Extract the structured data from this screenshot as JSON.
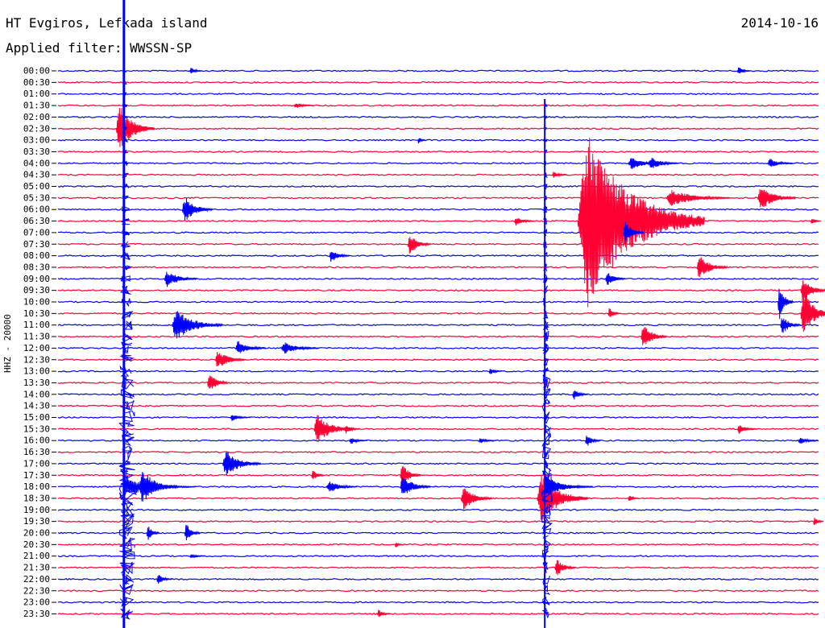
{
  "header": {
    "title": "HT Evgiros, Lefkada island",
    "date": "2014-10-16",
    "filter": "Applied filter: WWSSN-SP"
  },
  "colors": {
    "blue": "#0000ff",
    "red": "#ff0033"
  },
  "chart_data": {
    "type": "line",
    "title": "HT Evgiros, Lefkada island",
    "ylabel": "HHZ - 20000",
    "x_range_minutes": [
      0,
      30
    ],
    "series_colors": [
      "blue",
      "red"
    ],
    "categories": [
      "00:00",
      "00:30",
      "01:00",
      "01:30",
      "02:00",
      "02:30",
      "03:00",
      "03:30",
      "04:00",
      "04:30",
      "05:00",
      "05:30",
      "06:00",
      "06:30",
      "07:00",
      "07:30",
      "08:00",
      "08:30",
      "09:00",
      "09:30",
      "10:00",
      "10:30",
      "11:00",
      "11:30",
      "12:00",
      "12:30",
      "13:00",
      "13:30",
      "14:00",
      "14:30",
      "15:00",
      "15:30",
      "16:00",
      "16:30",
      "17:00",
      "17:30",
      "18:00",
      "18:30",
      "19:00",
      "19:30",
      "20:00",
      "20:30",
      "21:00",
      "21:30",
      "22:00",
      "22:30",
      "23:00",
      "23:30"
    ],
    "events": [
      {
        "row": 0,
        "minute": 5.2,
        "amplitude": 6,
        "duration": 0.5
      },
      {
        "row": 0,
        "minute": 26.8,
        "amplitude": 8,
        "duration": 0.5
      },
      {
        "row": 3,
        "minute": 9.3,
        "amplitude": 5,
        "duration": 0.8
      },
      {
        "row": 5,
        "minute": 2.3,
        "amplitude": 40,
        "duration": 1.5
      },
      {
        "row": 6,
        "minute": 14.2,
        "amplitude": 6,
        "duration": 0.3
      },
      {
        "row": 8,
        "minute": 22.5,
        "amplitude": 10,
        "duration": 1.5
      },
      {
        "row": 8,
        "minute": 23.3,
        "amplitude": 10,
        "duration": 1.2
      },
      {
        "row": 8,
        "minute": 28.0,
        "amplitude": 8,
        "duration": 1.0
      },
      {
        "row": 9,
        "minute": 19.5,
        "amplitude": 6,
        "duration": 0.6
      },
      {
        "row": 11,
        "minute": 24.0,
        "amplitude": 14,
        "duration": 2.5
      },
      {
        "row": 11,
        "minute": 27.6,
        "amplitude": 20,
        "duration": 1.5
      },
      {
        "row": 12,
        "minute": 4.9,
        "amplitude": 22,
        "duration": 1.2
      },
      {
        "row": 13,
        "minute": 20.5,
        "amplitude": 140,
        "duration": 5.0
      },
      {
        "row": 13,
        "minute": 18.0,
        "amplitude": 8,
        "duration": 0.8
      },
      {
        "row": 13,
        "minute": 29.7,
        "amplitude": 6,
        "duration": 0.4
      },
      {
        "row": 14,
        "minute": 22.3,
        "amplitude": 20,
        "duration": 0.8
      },
      {
        "row": 15,
        "minute": 13.8,
        "amplitude": 18,
        "duration": 0.9
      },
      {
        "row": 16,
        "minute": 10.7,
        "amplitude": 12,
        "duration": 0.8
      },
      {
        "row": 17,
        "minute": 25.2,
        "amplitude": 20,
        "duration": 1.2
      },
      {
        "row": 18,
        "minute": 4.2,
        "amplitude": 14,
        "duration": 1.3
      },
      {
        "row": 18,
        "minute": 21.6,
        "amplitude": 12,
        "duration": 0.8
      },
      {
        "row": 19,
        "minute": 29.3,
        "amplitude": 22,
        "duration": 1.0
      },
      {
        "row": 20,
        "minute": 28.4,
        "amplitude": 30,
        "duration": 0.6
      },
      {
        "row": 21,
        "minute": 29.3,
        "amplitude": 40,
        "duration": 1.2
      },
      {
        "row": 21,
        "minute": 21.7,
        "amplitude": 10,
        "duration": 0.5
      },
      {
        "row": 22,
        "minute": 4.5,
        "amplitude": 26,
        "duration": 2.0
      },
      {
        "row": 22,
        "minute": 28.5,
        "amplitude": 16,
        "duration": 0.8
      },
      {
        "row": 23,
        "minute": 23.0,
        "amplitude": 22,
        "duration": 1.0
      },
      {
        "row": 24,
        "minute": 7.0,
        "amplitude": 12,
        "duration": 1.2
      },
      {
        "row": 24,
        "minute": 8.8,
        "amplitude": 10,
        "duration": 1.5
      },
      {
        "row": 25,
        "minute": 6.2,
        "amplitude": 16,
        "duration": 1.2
      },
      {
        "row": 26,
        "minute": 17.0,
        "amplitude": 6,
        "duration": 0.5
      },
      {
        "row": 27,
        "minute": 5.9,
        "amplitude": 18,
        "duration": 0.8
      },
      {
        "row": 28,
        "minute": 20.3,
        "amplitude": 10,
        "duration": 0.6
      },
      {
        "row": 30,
        "minute": 6.8,
        "amplitude": 6,
        "duration": 0.8
      },
      {
        "row": 31,
        "minute": 10.1,
        "amplitude": 26,
        "duration": 1.5
      },
      {
        "row": 31,
        "minute": 11.3,
        "amplitude": 8,
        "duration": 0.6
      },
      {
        "row": 31,
        "minute": 26.8,
        "amplitude": 8,
        "duration": 0.8
      },
      {
        "row": 32,
        "minute": 11.5,
        "amplitude": 6,
        "duration": 0.7
      },
      {
        "row": 32,
        "minute": 16.6,
        "amplitude": 5,
        "duration": 0.7
      },
      {
        "row": 32,
        "minute": 20.8,
        "amplitude": 12,
        "duration": 0.6
      },
      {
        "row": 32,
        "minute": 29.2,
        "amplitude": 6,
        "duration": 0.8
      },
      {
        "row": 34,
        "minute": 6.5,
        "amplitude": 22,
        "duration": 1.5
      },
      {
        "row": 35,
        "minute": 10.0,
        "amplitude": 10,
        "duration": 0.5
      },
      {
        "row": 35,
        "minute": 13.5,
        "amplitude": 20,
        "duration": 0.8
      },
      {
        "row": 36,
        "minute": 3.2,
        "amplitude": 30,
        "duration": 1.5
      },
      {
        "row": 36,
        "minute": 10.6,
        "amplitude": 10,
        "duration": 1.2
      },
      {
        "row": 36,
        "minute": 13.5,
        "amplitude": 20,
        "duration": 1.2
      },
      {
        "row": 36,
        "minute": 19.2,
        "amplitude": 20,
        "duration": 1.2
      },
      {
        "row": 37,
        "minute": 15.9,
        "amplitude": 20,
        "duration": 1.2
      },
      {
        "row": 37,
        "minute": 18.9,
        "amplitude": 40,
        "duration": 2.0
      },
      {
        "row": 37,
        "minute": 22.5,
        "amplitude": 6,
        "duration": 0.4
      },
      {
        "row": 39,
        "minute": 29.8,
        "amplitude": 8,
        "duration": 0.4
      },
      {
        "row": 40,
        "minute": 3.5,
        "amplitude": 14,
        "duration": 0.5
      },
      {
        "row": 40,
        "minute": 5.0,
        "amplitude": 18,
        "duration": 0.6
      },
      {
        "row": 41,
        "minute": 13.3,
        "amplitude": 6,
        "duration": 0.3
      },
      {
        "row": 42,
        "minute": 5.2,
        "amplitude": 4,
        "duration": 0.6
      },
      {
        "row": 43,
        "minute": 19.6,
        "amplitude": 16,
        "duration": 0.8
      },
      {
        "row": 44,
        "minute": 3.9,
        "amplitude": 10,
        "duration": 0.6
      },
      {
        "row": 47,
        "minute": 12.6,
        "amplitude": 8,
        "duration": 0.5
      }
    ],
    "big_events": [
      {
        "start_row": 0,
        "end_row": 47,
        "minute": 2.6,
        "onset_row": 36
      },
      {
        "start_row": 3,
        "end_row": 47,
        "minute": 19.2,
        "onset_row": 36
      }
    ]
  }
}
